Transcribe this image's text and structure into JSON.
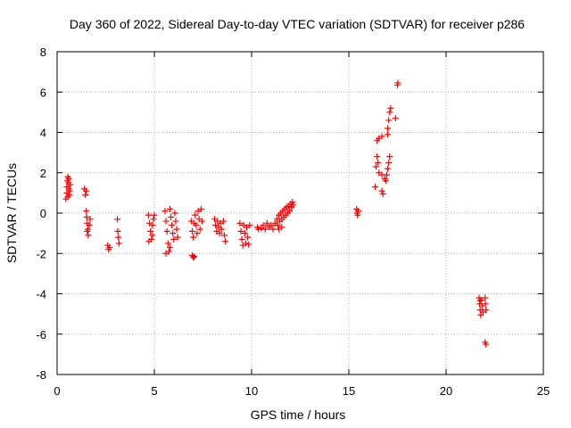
{
  "chart_data": {
    "type": "scatter",
    "title": "Day 360 of 2022, Sidereal Day-to-day VTEC variation (SDTVAR) for receiver p286",
    "xlabel": "GPS time / hours",
    "ylabel": "SDTVAR / TECUs",
    "xlim": [
      0,
      25
    ],
    "ylim": [
      -8,
      8
    ],
    "xticks": [
      "0",
      "5",
      "10",
      "15",
      "20",
      "25"
    ],
    "yticks": [
      "-8",
      "-6",
      "-4",
      "-2",
      "0",
      "2",
      "4",
      "6",
      "8"
    ],
    "grid": true,
    "marker": "plus",
    "color": "#ff0000",
    "series": [
      {
        "name": "SDTVAR",
        "points": [
          [
            0.45,
            0.7
          ],
          [
            0.5,
            1.0
          ],
          [
            0.5,
            1.3
          ],
          [
            0.52,
            1.6
          ],
          [
            0.55,
            1.8
          ],
          [
            0.58,
            1.5
          ],
          [
            0.6,
            1.2
          ],
          [
            0.62,
            0.9
          ],
          [
            0.65,
            1.1
          ],
          [
            0.68,
            1.4
          ],
          [
            0.55,
            0.8
          ],
          [
            0.6,
            1.7
          ],
          [
            1.4,
            1.2
          ],
          [
            1.45,
            0.9
          ],
          [
            1.5,
            1.1
          ],
          [
            1.5,
            0.1
          ],
          [
            1.52,
            -0.2
          ],
          [
            1.55,
            -0.5
          ],
          [
            1.58,
            -0.8
          ],
          [
            1.6,
            -1.1
          ],
          [
            1.65,
            -0.6
          ],
          [
            1.7,
            -0.3
          ],
          [
            1.55,
            -0.9
          ],
          [
            2.6,
            -1.6
          ],
          [
            2.65,
            -1.8
          ],
          [
            2.7,
            -1.7
          ],
          [
            3.1,
            -0.3
          ],
          [
            3.12,
            -0.9
          ],
          [
            3.15,
            -1.2
          ],
          [
            3.18,
            -1.5
          ],
          [
            4.7,
            -0.1
          ],
          [
            4.75,
            -0.5
          ],
          [
            4.8,
            -0.9
          ],
          [
            4.85,
            -1.3
          ],
          [
            4.9,
            -1.1
          ],
          [
            4.95,
            -0.3
          ],
          [
            5.0,
            -0.1
          ],
          [
            4.72,
            -1.4
          ],
          [
            4.9,
            -0.6
          ],
          [
            5.55,
            0.1
          ],
          [
            5.6,
            -0.4
          ],
          [
            5.65,
            -0.9
          ],
          [
            5.7,
            -1.5
          ],
          [
            5.75,
            -1.9
          ],
          [
            5.8,
            0.2
          ],
          [
            5.85,
            -0.2
          ],
          [
            5.9,
            -0.6
          ],
          [
            5.95,
            -1.0
          ],
          [
            6.0,
            -1.3
          ],
          [
            6.05,
            0.0
          ],
          [
            6.1,
            -0.4
          ],
          [
            6.15,
            -0.8
          ],
          [
            6.2,
            -1.2
          ],
          [
            5.6,
            -2.0
          ],
          [
            5.8,
            -1.7
          ],
          [
            6.95,
            -2.1
          ],
          [
            7.0,
            -2.2
          ],
          [
            7.05,
            -2.15
          ],
          [
            6.9,
            -0.4
          ],
          [
            6.95,
            -0.9
          ],
          [
            7.0,
            -1.2
          ],
          [
            7.05,
            -0.5
          ],
          [
            7.1,
            -0.1
          ],
          [
            7.15,
            -0.6
          ],
          [
            7.2,
            -1.0
          ],
          [
            7.25,
            0.1
          ],
          [
            7.3,
            -0.3
          ],
          [
            7.35,
            -0.8
          ],
          [
            7.4,
            0.2
          ],
          [
            7.45,
            -0.4
          ],
          [
            8.1,
            -0.3
          ],
          [
            8.15,
            -0.6
          ],
          [
            8.2,
            -0.9
          ],
          [
            8.25,
            -0.4
          ],
          [
            8.3,
            -0.7
          ],
          [
            8.35,
            -1.0
          ],
          [
            8.4,
            -0.5
          ],
          [
            8.45,
            -0.8
          ],
          [
            8.55,
            -0.4
          ],
          [
            8.6,
            -1.1
          ],
          [
            8.65,
            -1.4
          ],
          [
            9.4,
            -0.5
          ],
          [
            9.45,
            -0.9
          ],
          [
            9.5,
            -1.3
          ],
          [
            9.55,
            -1.6
          ],
          [
            9.6,
            -0.6
          ],
          [
            9.65,
            -1.0
          ],
          [
            9.7,
            -1.5
          ],
          [
            9.75,
            -0.7
          ],
          [
            9.8,
            -1.2
          ],
          [
            9.85,
            -1.55
          ],
          [
            9.9,
            -0.6
          ],
          [
            10.3,
            -0.7
          ],
          [
            10.35,
            -0.8
          ],
          [
            10.5,
            -0.75
          ],
          [
            10.6,
            -0.6
          ],
          [
            10.7,
            -0.8
          ],
          [
            10.8,
            -0.5
          ],
          [
            10.9,
            -0.7
          ],
          [
            11.0,
            -0.6
          ],
          [
            11.1,
            -0.8
          ],
          [
            11.2,
            -0.5
          ],
          [
            11.3,
            -0.3
          ],
          [
            11.35,
            -0.6
          ],
          [
            11.4,
            -0.1
          ],
          [
            11.45,
            -0.4
          ],
          [
            11.5,
            0.0
          ],
          [
            11.55,
            -0.3
          ],
          [
            11.6,
            0.1
          ],
          [
            11.65,
            -0.2
          ],
          [
            11.7,
            0.2
          ],
          [
            11.75,
            -0.1
          ],
          [
            11.8,
            0.3
          ],
          [
            11.85,
            0.0
          ],
          [
            11.9,
            0.35
          ],
          [
            11.95,
            0.1
          ],
          [
            12.0,
            0.45
          ],
          [
            12.05,
            0.3
          ],
          [
            12.1,
            0.55
          ],
          [
            12.15,
            0.4
          ],
          [
            11.4,
            -0.8
          ],
          [
            11.55,
            -0.7
          ],
          [
            15.4,
            0.2
          ],
          [
            15.42,
            0.0
          ],
          [
            15.45,
            -0.1
          ],
          [
            15.48,
            0.1
          ],
          [
            16.35,
            1.3
          ],
          [
            16.4,
            2.3
          ],
          [
            16.45,
            2.8
          ],
          [
            16.5,
            2.5
          ],
          [
            16.55,
            2.0
          ],
          [
            16.45,
            3.6
          ],
          [
            16.55,
            3.7
          ],
          [
            16.7,
            3.8
          ],
          [
            16.7,
            1.1
          ],
          [
            16.75,
            0.95
          ],
          [
            16.7,
            1.9
          ],
          [
            16.85,
            1.7
          ],
          [
            16.9,
            1.6
          ],
          [
            16.95,
            1.9
          ],
          [
            17.0,
            2.2
          ],
          [
            17.05,
            2.5
          ],
          [
            17.1,
            2.8
          ],
          [
            17.0,
            3.9
          ],
          [
            17.0,
            4.2
          ],
          [
            17.05,
            4.6
          ],
          [
            17.1,
            5.0
          ],
          [
            17.15,
            5.2
          ],
          [
            17.4,
            4.7
          ],
          [
            17.5,
            6.35
          ],
          [
            17.52,
            6.45
          ],
          [
            21.7,
            -4.2
          ],
          [
            21.72,
            -4.5
          ],
          [
            21.75,
            -4.8
          ],
          [
            21.78,
            -5.05
          ],
          [
            21.8,
            -4.3
          ],
          [
            21.85,
            -4.6
          ],
          [
            21.9,
            -4.9
          ],
          [
            22.0,
            -4.2
          ],
          [
            22.02,
            -4.5
          ],
          [
            22.05,
            -4.8
          ],
          [
            21.75,
            -4.35
          ],
          [
            22.0,
            -6.4
          ],
          [
            22.05,
            -6.5
          ]
        ]
      }
    ]
  }
}
